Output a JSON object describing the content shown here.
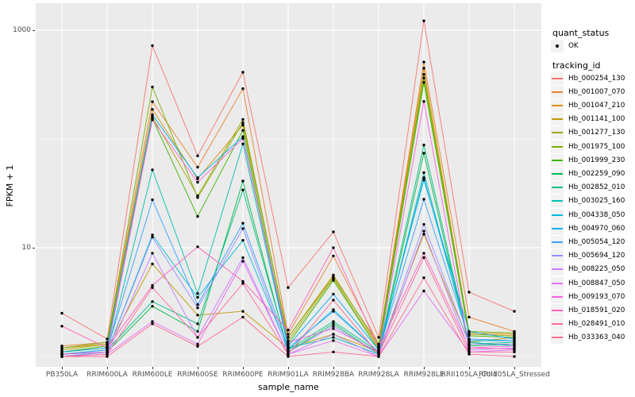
{
  "figure": {
    "panel_bg": "#EBEBEB",
    "grid_color": "#FFFFFF",
    "point_color": "#000000",
    "axis_text_color": "#4D4D4D"
  },
  "axes": {
    "x_title": "sample_name",
    "y_title": "FPKM + 1",
    "y_ticks": [
      {
        "label": "1000",
        "value": 1000
      },
      {
        "label": "10",
        "value": 10
      }
    ]
  },
  "legend": {
    "quant_status": {
      "title": "quant_status",
      "items": [
        {
          "label": "OK",
          "symbol": "point",
          "color": "#000000"
        }
      ]
    },
    "tracking_id": {
      "title": "tracking_id"
    }
  },
  "chart_data": {
    "type": "line",
    "title": "",
    "xlabel": "sample_name",
    "ylabel": "FPKM + 1",
    "y_scale": "log10",
    "ylim": [
      0.75,
      1600
    ],
    "grid_major_y": [
      10,
      1000
    ],
    "grid_minor_y": [
      1,
      100
    ],
    "legend_position": "right",
    "categories": [
      "PB350LA",
      "RRIM600LA",
      "RRIM600LE",
      "RRIM600SE",
      "RRIM600PE",
      "RRIM901LA",
      "RRIM928BA",
      "RRIM928LA",
      "RRIM928LE",
      "RRII105LA_Cold",
      "RRII105LA_Stressed"
    ],
    "series": [
      {
        "name": "Hb_000254_130",
        "color": "#F8766D",
        "values": [
          2.5,
          1.45,
          720,
          70,
          410,
          4.3,
          14,
          1.5,
          1220,
          3.9,
          2.6
        ]
      },
      {
        "name": "Hb_001007_070",
        "color": "#EA8331",
        "values": [
          1.25,
          1.35,
          220,
          55,
          290,
          1.6,
          8.4,
          1.3,
          510,
          2.3,
          1.7
        ]
      },
      {
        "name": "Hb_001047_210",
        "color": "#D89000",
        "values": [
          1.2,
          1.3,
          187,
          43,
          134,
          1.5,
          5.6,
          1.25,
          447,
          1.65,
          1.6
        ]
      },
      {
        "name": "Hb_001141_100",
        "color": "#C09B00",
        "values": [
          1.1,
          1.2,
          7.1,
          2.4,
          2.6,
          1.2,
          1.6,
          1.1,
          13.3,
          1.35,
          1.5
        ]
      },
      {
        "name": "Hb_001277_130",
        "color": "#A3A500",
        "values": [
          1.15,
          1.3,
          160,
          30,
          151,
          1.4,
          5.2,
          1.2,
          392,
          1.6,
          1.55
        ]
      },
      {
        "name": "Hb_001975_100",
        "color": "#7CAE00",
        "values": [
          1.2,
          1.35,
          300,
          29,
          141,
          1.5,
          5.4,
          1.3,
          363,
          1.7,
          1.65
        ]
      },
      {
        "name": "Hb_001999_230",
        "color": "#39B600",
        "values": [
          1.1,
          1.25,
          154,
          19.4,
          120,
          1.3,
          5.0,
          1.15,
          331,
          1.55,
          1.5
        ]
      },
      {
        "name": "Hb_002259_090",
        "color": "#00BB4E",
        "values": [
          1.05,
          1.1,
          2.9,
          1.7,
          41,
          1.1,
          2.0,
          1.05,
          74,
          1.25,
          1.3
        ]
      },
      {
        "name": "Hb_002852_010",
        "color": "#00C087",
        "values": [
          1.05,
          1.15,
          3.2,
          2.0,
          34,
          1.15,
          2.1,
          1.1,
          88,
          1.3,
          1.35
        ]
      },
      {
        "name": "Hb_003025_160",
        "color": "#00C0AF",
        "values": [
          1.0,
          1.1,
          52,
          3.8,
          90,
          1.2,
          1.5,
          1.05,
          49,
          1.35,
          1.25
        ]
      },
      {
        "name": "Hb_004338_050",
        "color": "#00BCD8",
        "values": [
          1.05,
          1.1,
          13.1,
          3.5,
          11.7,
          1.15,
          2.7,
          1.1,
          44,
          1.4,
          1.4
        ]
      },
      {
        "name": "Hb_004970_060",
        "color": "#00B0F6",
        "values": [
          1.1,
          1.2,
          167,
          44,
          105,
          1.25,
          3.75,
          1.15,
          42,
          1.7,
          1.45
        ]
      },
      {
        "name": "Hb_005054_120",
        "color": "#35A2FF",
        "values": [
          1.05,
          1.15,
          27.6,
          3.0,
          16.8,
          1.2,
          2.6,
          1.1,
          27.9,
          1.45,
          1.4
        ]
      },
      {
        "name": "Hb_005694_120",
        "color": "#9590FF",
        "values": [
          1.0,
          1.1,
          12.5,
          2.8,
          15,
          1.1,
          1.9,
          1.05,
          16.4,
          1.3,
          1.3
        ]
      },
      {
        "name": "Hb_008225_050",
        "color": "#C77CFF",
        "values": [
          1.0,
          1.05,
          8.9,
          1.5,
          8.1,
          1.05,
          1.6,
          1.0,
          14.2,
          1.15,
          1.2
        ]
      },
      {
        "name": "Hb_008847_050",
        "color": "#E76BF3",
        "values": [
          1.0,
          1.05,
          2.1,
          1.3,
          7.5,
          1.05,
          1.4,
          1.0,
          4.0,
          1.1,
          1.15
        ]
      },
      {
        "name": "Hb_009193_070",
        "color": "#FA62DB",
        "values": [
          1.05,
          1.1,
          150,
          40,
          101,
          1.35,
          1.8,
          1.1,
          221,
          1.2,
          1.25
        ]
      },
      {
        "name": "Hb_018591_020",
        "color": "#FF62BC",
        "values": [
          1.9,
          1.2,
          4.5,
          10.2,
          4.9,
          1.75,
          10,
          1.2,
          8.9,
          1.2,
          1.17
        ]
      },
      {
        "name": "Hb_028491_010",
        "color": "#FF6A98",
        "values": [
          1.0,
          1.05,
          4.3,
          1.5,
          4.7,
          1.05,
          3.3,
          1.05,
          8.1,
          1.1,
          1.1
        ]
      },
      {
        "name": "Hb_033363_040",
        "color": "#FF6C91",
        "values": [
          1.0,
          1.0,
          2.0,
          1.24,
          2.3,
          1.0,
          1.1,
          1.0,
          5.3,
          1.05,
          1.0
        ]
      }
    ]
  }
}
